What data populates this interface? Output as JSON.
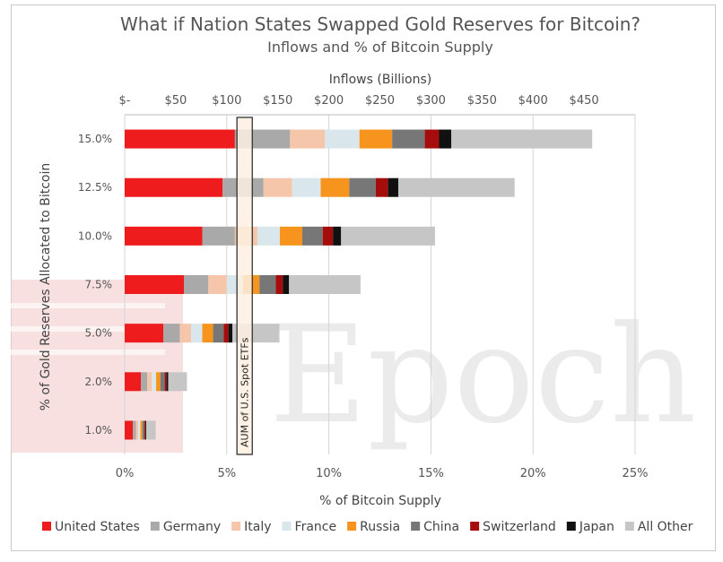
{
  "chart_data": {
    "type": "bar",
    "orientation": "horizontal",
    "stacked": true,
    "title": "What if Nation States Swapped Gold Reserves for Bitcoin?",
    "subtitle": "Inflows and % of Bitcoin Supply",
    "top_axis": {
      "label": "Inflows (Billions)",
      "ticks": [
        "$-",
        "$50",
        "$100",
        "$150",
        "$200",
        "$250",
        "$300",
        "$350",
        "$400",
        "$450"
      ],
      "range": [
        0,
        500
      ]
    },
    "xlabel": "% of Bitcoin Supply",
    "xticks": [
      "0%",
      "5%",
      "10%",
      "15%",
      "20%",
      "25%"
    ],
    "xlim": [
      0,
      25
    ],
    "ylabel": "% of Gold Reserves Allocated to Bitcoin",
    "grid": true,
    "legend_position": "bottom",
    "categories": [
      "15.0%",
      "12.5%",
      "10.0%",
      "7.5%",
      "5.0%",
      "2.0%",
      "1.0%"
    ],
    "series": [
      {
        "name": "United States",
        "color": "#ee1c1c",
        "values": [
          5.4,
          4.8,
          3.8,
          2.9,
          1.9,
          0.8,
          0.4
        ]
      },
      {
        "name": "Germany",
        "color": "#a9a9a9",
        "values": [
          2.7,
          2.0,
          1.6,
          1.2,
          0.8,
          0.3,
          0.15
        ]
      },
      {
        "name": "Italy",
        "color": "#f5c6aa",
        "values": [
          1.7,
          1.4,
          1.1,
          0.9,
          0.55,
          0.22,
          0.11
        ]
      },
      {
        "name": "France",
        "color": "#d9e6ec",
        "values": [
          1.7,
          1.4,
          1.1,
          0.8,
          0.55,
          0.22,
          0.11
        ]
      },
      {
        "name": "Russia",
        "color": "#f7941d",
        "values": [
          1.6,
          1.4,
          1.1,
          0.8,
          0.53,
          0.21,
          0.1
        ]
      },
      {
        "name": "China",
        "color": "#777777",
        "values": [
          1.6,
          1.3,
          1.0,
          0.8,
          0.52,
          0.21,
          0.1
        ]
      },
      {
        "name": "Switzerland",
        "color": "#a50d0d",
        "values": [
          0.7,
          0.6,
          0.5,
          0.35,
          0.23,
          0.09,
          0.05
        ]
      },
      {
        "name": "Japan",
        "color": "#111111",
        "values": [
          0.6,
          0.5,
          0.4,
          0.3,
          0.2,
          0.08,
          0.04
        ]
      },
      {
        "name": "All Other",
        "color": "#c6c6c6",
        "values": [
          6.9,
          5.7,
          4.6,
          3.5,
          2.3,
          0.92,
          0.46
        ]
      }
    ],
    "annotation": {
      "label": "AUM of U.S. Spot ETFs",
      "range": [
        5.5,
        6.25
      ],
      "fill": "#fdf0e0"
    }
  },
  "watermark": {
    "text": "Epoch",
    "color": "#f4cccc"
  }
}
